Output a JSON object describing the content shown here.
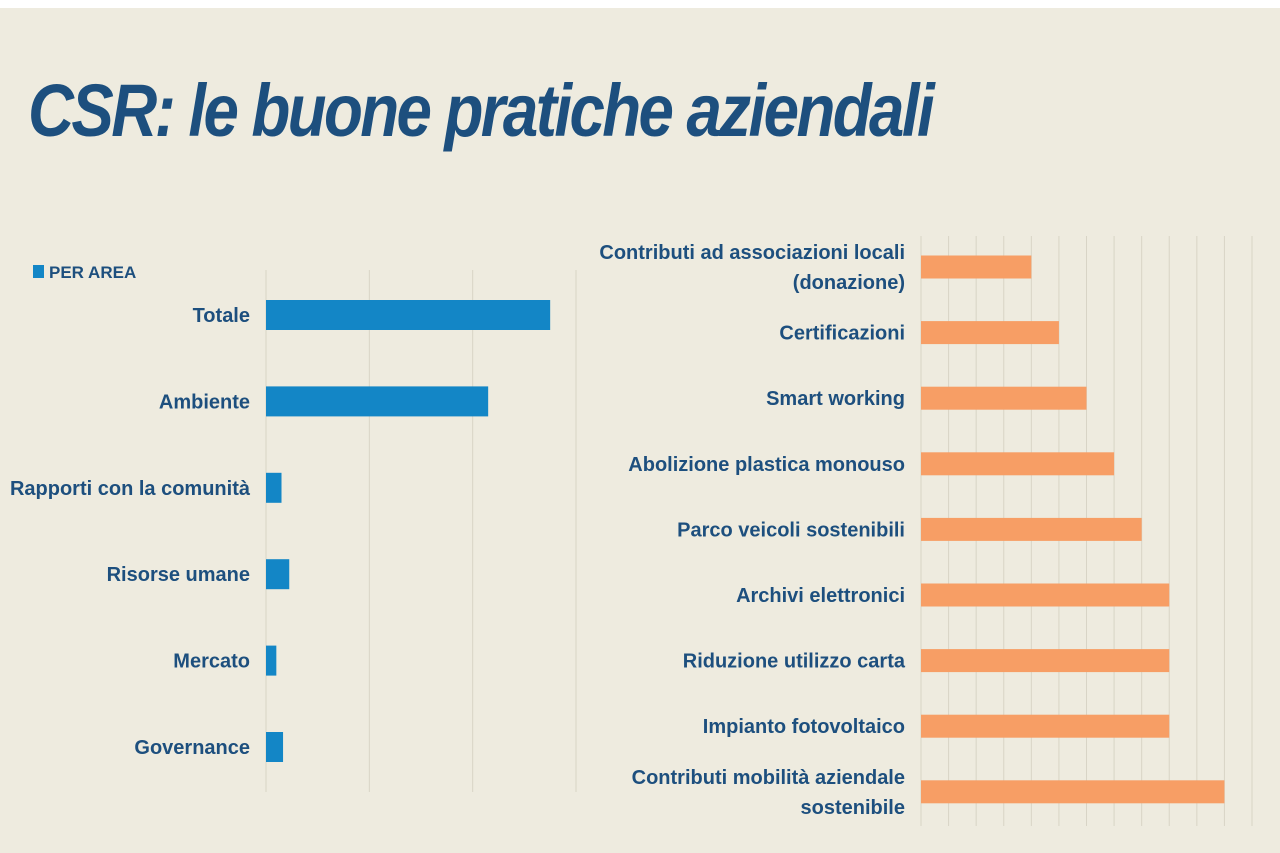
{
  "title": "CSR: le buone pratiche aziendali",
  "colors": {
    "background": "#eeebdf",
    "title": "#1d4f7e",
    "blue_bar": "#1386c6",
    "orange_bar": "#f79e65",
    "grid": "#d8d4c6"
  },
  "chart_data": [
    {
      "type": "bar",
      "orientation": "horizontal",
      "categories": [
        "Totale",
        "Ambiente",
        "Rapporti con la comunità",
        "Risorse umane",
        "Mercato",
        "Governance"
      ],
      "series": [
        {
          "name": "PER AREA",
          "values": [
            55,
            43,
            3,
            4.5,
            2,
            3.3
          ]
        }
      ],
      "xlim": [
        0,
        60
      ],
      "grid": true,
      "legend": "top-left"
    },
    {
      "type": "bar",
      "orientation": "horizontal",
      "categories": [
        "Contributi ad associazioni locali (donazione)",
        "Certificazioni",
        "Smart working",
        "Abolizione plastica monouso",
        "Parco veicoli sostenibili",
        "Archivi elettronici",
        "Riduzione utilizzo carta",
        "Impianto fotovoltaico",
        "Contributi mobilità aziendale sostenibile"
      ],
      "values": [
        4,
        5,
        6,
        7,
        8,
        9,
        9,
        9,
        11
      ],
      "xlim": [
        0,
        12
      ],
      "grid": true
    }
  ]
}
